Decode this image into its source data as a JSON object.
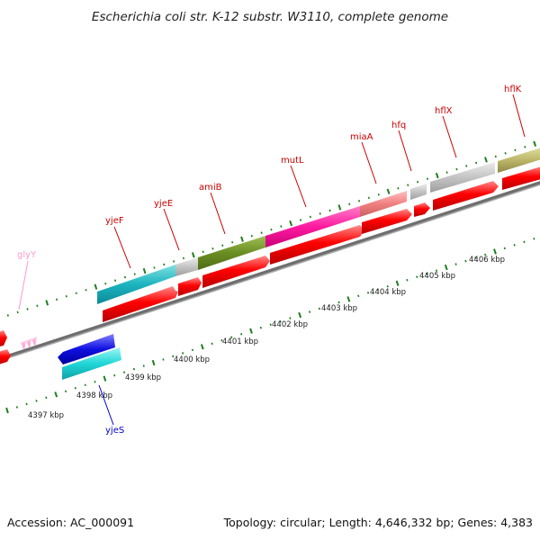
{
  "title": "Escherichia coli str. K-12 substr. W3110, complete genome",
  "accession": "Accession: AC_000091",
  "topology": "Topology: circular; Length: 4,646,332 bp; Genes: 4,383",
  "colors": {
    "genome_line": "#808080",
    "tick_green": "#1e7d1e",
    "red_cds": "#ff0000",
    "label_red": "#cc0000",
    "label_blue": "#0000cc",
    "label_pink": "#ff99cc"
  },
  "genes": [
    {
      "name": "glyY",
      "color": "#ff99cc"
    },
    {
      "name": "yjeF",
      "color": "#cc0000"
    },
    {
      "name": "yjeE",
      "color": "#cc0000"
    },
    {
      "name": "amiB",
      "color": "#cc0000"
    },
    {
      "name": "mutL",
      "color": "#cc0000"
    },
    {
      "name": "miaA",
      "color": "#cc0000"
    },
    {
      "name": "hfq",
      "color": "#cc0000"
    },
    {
      "name": "hflX",
      "color": "#cc0000"
    },
    {
      "name": "hflK",
      "color": "#cc0000"
    },
    {
      "name": "yjeS",
      "color": "#0000cc"
    }
  ],
  "kbp_labels": [
    "4397 kbp",
    "4398 kbp",
    "4399 kbp",
    "4400 kbp",
    "4401 kbp",
    "4402 kbp",
    "4403 kbp",
    "4404 kbp",
    "4405 kbp",
    "4406 kbp"
  ]
}
